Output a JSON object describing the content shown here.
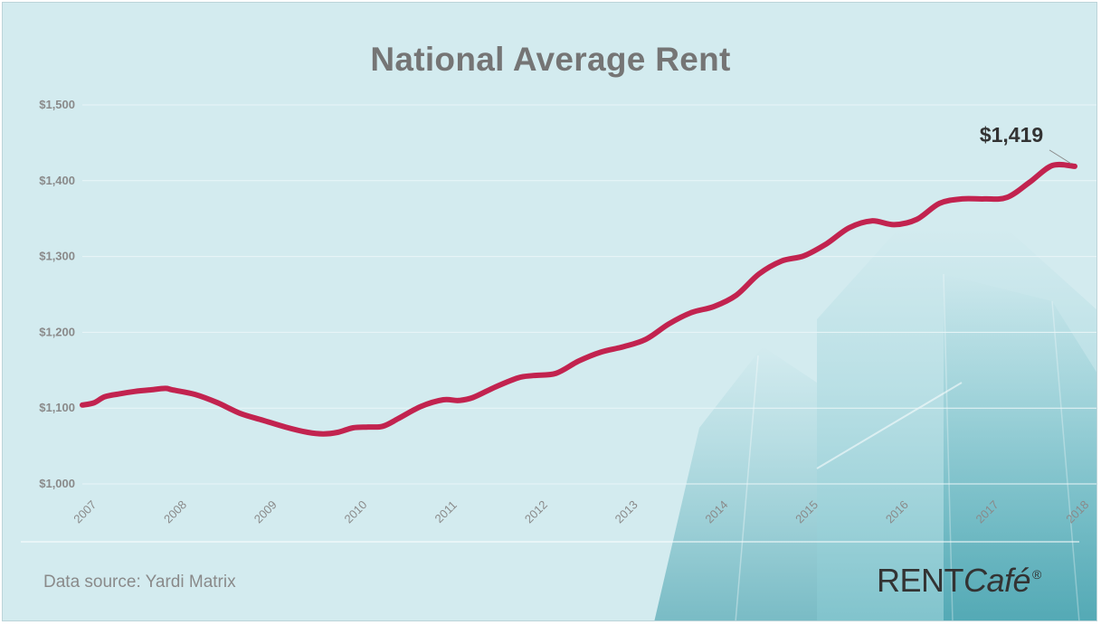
{
  "source_note": "Data source:  Yardi Matrix",
  "brand": {
    "main": "RENT",
    "accent": "Café",
    "mark": "®"
  },
  "colors": {
    "background": "#d3ebef",
    "line": "#c2234f",
    "grid": "#eaf6f8",
    "building": "#3aa0ad"
  },
  "chart_data": {
    "type": "line",
    "title": "National Average Rent",
    "xlabel": "",
    "ylabel": "",
    "ylim": [
      1000,
      1500
    ],
    "yticks": [
      1000,
      1100,
      1200,
      1300,
      1400,
      1500
    ],
    "ytick_labels": [
      "$1,000",
      "$1,100",
      "$1,200",
      "$1,300",
      "$1,400",
      "$1,500"
    ],
    "xlim": [
      2007,
      2018
    ],
    "xticks": [
      2007,
      2008,
      2009,
      2010,
      2011,
      2012,
      2013,
      2014,
      2015,
      2016,
      2017,
      2018
    ],
    "xtick_labels": [
      "2007",
      "2008",
      "2009",
      "2010",
      "2011",
      "2012",
      "2013",
      "2014",
      "2015",
      "2016",
      "2017",
      "2018"
    ],
    "grid": true,
    "series": [
      {
        "x": [
          2007.0,
          2007.13,
          2007.25,
          2007.42,
          2007.58,
          2007.75,
          2007.92,
          2008.0,
          2008.25,
          2008.5,
          2008.75,
          2009.0,
          2009.25,
          2009.5,
          2009.67,
          2009.83,
          2010.0,
          2010.17,
          2010.33,
          2010.5,
          2010.75,
          2011.0,
          2011.17,
          2011.33,
          2011.58,
          2011.83,
          2012.0,
          2012.25,
          2012.5,
          2012.75,
          2013.0,
          2013.25,
          2013.5,
          2013.75,
          2014.0,
          2014.25,
          2014.5,
          2014.75,
          2015.0,
          2015.25,
          2015.5,
          2015.75,
          2016.0,
          2016.25,
          2016.5,
          2016.75,
          2017.0,
          2017.25,
          2017.5,
          2017.75,
          2018.0
        ],
        "y": [
          1104,
          1107,
          1115,
          1119,
          1122,
          1124,
          1126,
          1124,
          1118,
          1107,
          1093,
          1084,
          1075,
          1068,
          1066,
          1068,
          1074,
          1075,
          1076,
          1086,
          1102,
          1111,
          1110,
          1114,
          1128,
          1140,
          1143,
          1146,
          1162,
          1174,
          1181,
          1191,
          1211,
          1226,
          1234,
          1249,
          1277,
          1294,
          1301,
          1317,
          1338,
          1347,
          1342,
          1349,
          1370,
          1376,
          1376,
          1378,
          1398,
          1420,
          1419
        ]
      }
    ],
    "annotations": [
      {
        "text": "$1,419",
        "x": 2018.0,
        "y": 1419
      }
    ]
  }
}
